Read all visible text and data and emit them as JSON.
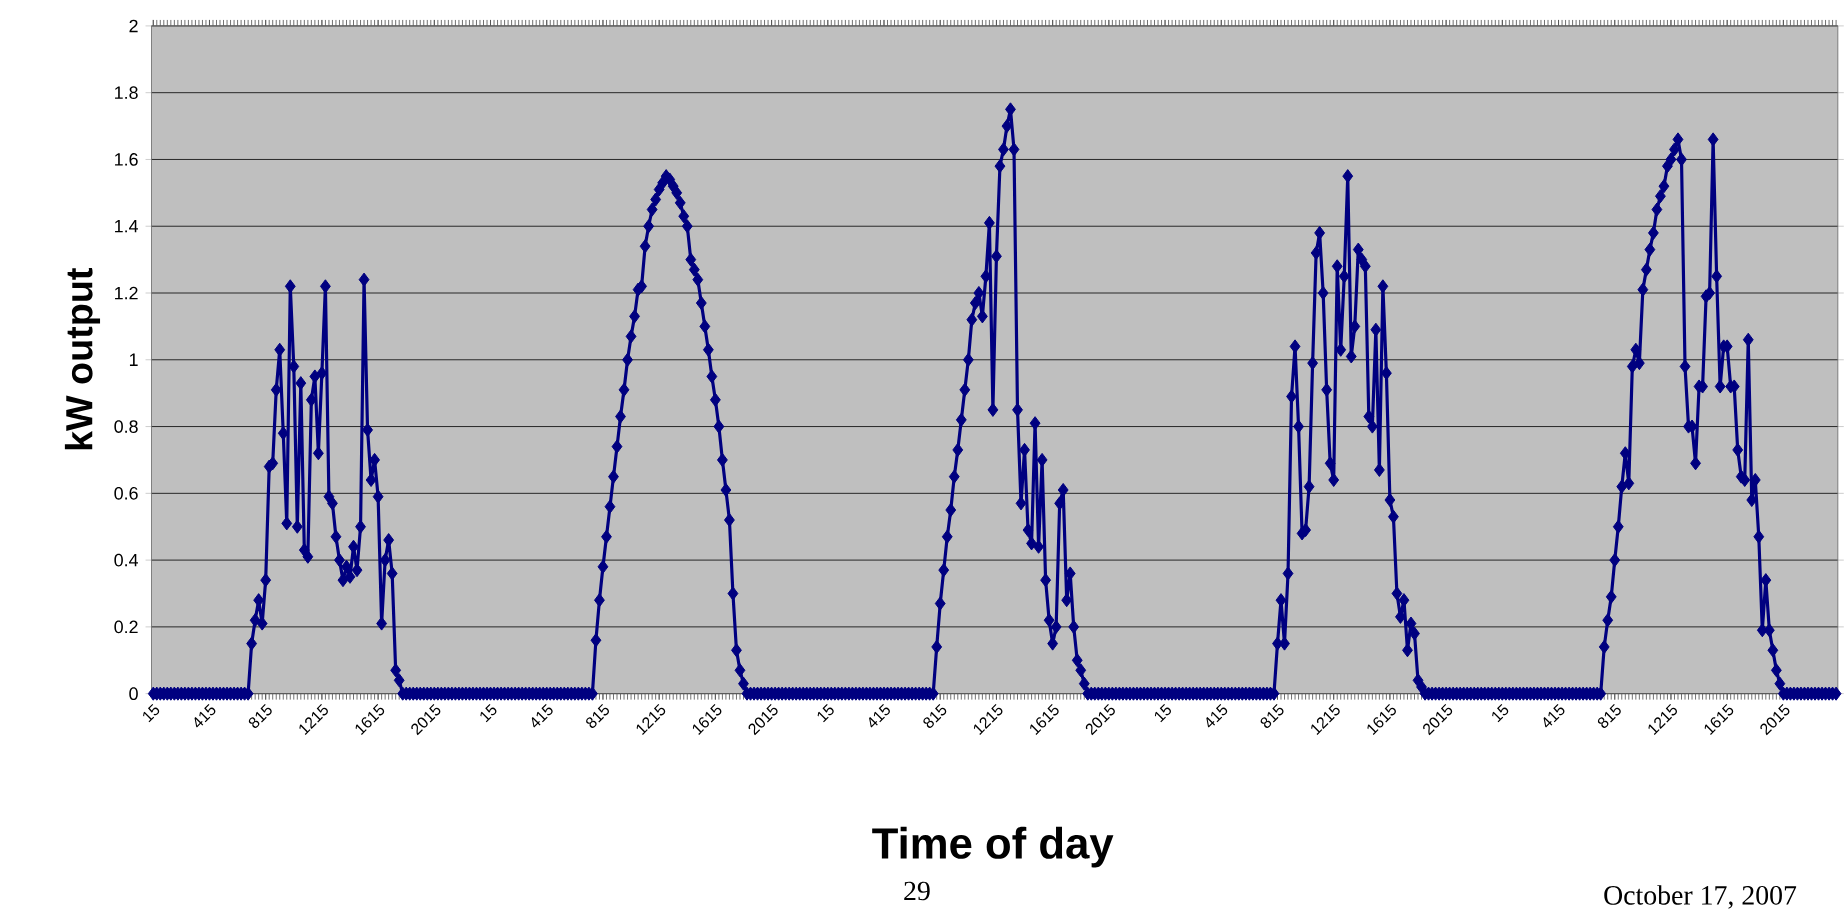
{
  "chart_data": {
    "type": "line",
    "xlabel": "Time of day",
    "ylabel": "kW output",
    "annotations": [
      "29",
      "October 17, 2007"
    ],
    "categories": [
      "15",
      null,
      null,
      null,
      null,
      null,
      null,
      null,
      null,
      null,
      null,
      null,
      null,
      null,
      null,
      null,
      "415",
      null,
      null,
      null,
      null,
      null,
      null,
      null,
      null,
      null,
      null,
      null,
      null,
      null,
      null,
      null,
      "815",
      null,
      null,
      null,
      null,
      null,
      null,
      null,
      null,
      null,
      null,
      null,
      null,
      null,
      null,
      null,
      "1215",
      null,
      null,
      null,
      null,
      null,
      null,
      null,
      null,
      null,
      null,
      null,
      null,
      null,
      null,
      null,
      "1615",
      null,
      null,
      null,
      null,
      null,
      null,
      null,
      null,
      null,
      null,
      null,
      null,
      null,
      null,
      null,
      "2015",
      null,
      null,
      null,
      null,
      null,
      null,
      null,
      null,
      null,
      null,
      null,
      null,
      null,
      null,
      null,
      "15",
      null,
      null,
      null,
      null,
      null,
      null,
      null,
      null,
      null,
      null,
      null,
      null,
      null,
      null,
      null,
      "415",
      null,
      null,
      null,
      null,
      null,
      null,
      null,
      null,
      null,
      null,
      null,
      null,
      null,
      null,
      null,
      "815",
      null,
      null,
      null,
      null,
      null,
      null,
      null,
      null,
      null,
      null,
      null,
      null,
      null,
      null,
      null,
      "1215",
      null,
      null,
      null,
      null,
      null,
      null,
      null,
      null,
      null,
      null,
      null,
      null,
      null,
      null,
      null,
      "1615",
      null,
      null,
      null,
      null,
      null,
      null,
      null,
      null,
      null,
      null,
      null,
      null,
      null,
      null,
      null,
      "2015",
      null,
      null,
      null,
      null,
      null,
      null,
      null,
      null,
      null,
      null,
      null,
      null,
      null,
      null,
      null,
      "15",
      null,
      null,
      null,
      null,
      null,
      null,
      null,
      null,
      null,
      null,
      null,
      null,
      null,
      null,
      null,
      "415",
      null,
      null,
      null,
      null,
      null,
      null,
      null,
      null,
      null,
      null,
      null,
      null,
      null,
      null,
      null,
      "815",
      null,
      null,
      null,
      null,
      null,
      null,
      null,
      null,
      null,
      null,
      null,
      null,
      null,
      null,
      null,
      "1215",
      null,
      null,
      null,
      null,
      null,
      null,
      null,
      null,
      null,
      null,
      null,
      null,
      null,
      null,
      null,
      "1615",
      null,
      null,
      null,
      null,
      null,
      null,
      null,
      null,
      null,
      null,
      null,
      null,
      null,
      null,
      null,
      "2015",
      null,
      null,
      null,
      null,
      null,
      null,
      null,
      null,
      null,
      null,
      null,
      null,
      null,
      null,
      null,
      "15",
      null,
      null,
      null,
      null,
      null,
      null,
      null,
      null,
      null,
      null,
      null,
      null,
      null,
      null,
      null,
      "415",
      null,
      null,
      null,
      null,
      null,
      null,
      null,
      null,
      null,
      null,
      null,
      null,
      null,
      null,
      null,
      "815",
      null,
      null,
      null,
      null,
      null,
      null,
      null,
      null,
      null,
      null,
      null,
      null,
      null,
      null,
      null,
      "1215",
      null,
      null,
      null,
      null,
      null,
      null,
      null,
      null,
      null,
      null,
      null,
      null,
      null,
      null,
      null,
      "1615",
      null,
      null,
      null,
      null,
      null,
      null,
      null,
      null,
      null,
      null,
      null,
      null,
      null,
      null,
      null,
      "2015",
      null,
      null,
      null,
      null,
      null,
      null,
      null,
      null,
      null,
      null,
      null,
      null,
      null,
      null,
      null,
      "15",
      null,
      null,
      null,
      null,
      null,
      null,
      null,
      null,
      null,
      null,
      null,
      null,
      null,
      null,
      null,
      "415",
      null,
      null,
      null,
      null,
      null,
      null,
      null,
      null,
      null,
      null,
      null,
      null,
      null,
      null,
      null,
      "815",
      null,
      null,
      null,
      null,
      null,
      null,
      null,
      null,
      null,
      null,
      null,
      null,
      null,
      null,
      null,
      "1215",
      null,
      null,
      null,
      null,
      null,
      null,
      null,
      null,
      null,
      null,
      null,
      null,
      null,
      null,
      null,
      "1615",
      null,
      null,
      null,
      null,
      null,
      null,
      null,
      null,
      null,
      null,
      null,
      null,
      null,
      null,
      null,
      "2015",
      null,
      null,
      null,
      null,
      null,
      null,
      null,
      null,
      null,
      null,
      null,
      null,
      null,
      null,
      null
    ],
    "values": [
      0,
      0,
      0,
      0,
      0,
      0,
      0,
      0,
      0,
      0,
      0,
      0,
      0,
      0,
      0,
      0,
      0,
      0,
      0,
      0,
      0,
      0,
      0,
      0,
      0,
      0,
      0,
      0,
      0.15,
      0.22,
      0.28,
      0.21,
      0.34,
      0.68,
      0.69,
      0.91,
      1.03,
      0.78,
      0.51,
      1.22,
      0.98,
      0.5,
      0.93,
      0.43,
      0.41,
      0.88,
      0.95,
      0.72,
      0.96,
      1.22,
      0.59,
      0.57,
      0.47,
      0.4,
      0.34,
      0.38,
      0.35,
      0.44,
      0.37,
      0.5,
      1.24,
      0.79,
      0.64,
      0.7,
      0.59,
      0.21,
      0.4,
      0.46,
      0.36,
      0.07,
      0.04,
      0,
      0,
      0,
      0,
      0,
      0,
      0,
      0,
      0,
      0,
      0,
      0,
      0,
      0,
      0,
      0,
      0,
      0,
      0,
      0,
      0,
      0,
      0,
      0,
      0,
      0,
      0,
      0,
      0,
      0,
      0,
      0,
      0,
      0,
      0,
      0,
      0,
      0,
      0,
      0,
      0,
      0,
      0,
      0,
      0,
      0,
      0,
      0,
      0,
      0,
      0,
      0,
      0,
      0,
      0,
      0.16,
      0.28,
      0.38,
      0.47,
      0.56,
      0.65,
      0.74,
      0.83,
      0.91,
      1.0,
      1.07,
      1.13,
      1.21,
      1.22,
      1.34,
      1.4,
      1.45,
      1.48,
      1.51,
      1.53,
      1.55,
      1.54,
      1.52,
      1.5,
      1.47,
      1.43,
      1.4,
      1.3,
      1.27,
      1.24,
      1.17,
      1.1,
      1.03,
      0.95,
      0.88,
      0.8,
      0.7,
      0.61,
      0.52,
      0.3,
      0.13,
      0.07,
      0.03,
      0,
      0,
      0,
      0,
      0,
      0,
      0,
      0,
      0,
      0,
      0,
      0,
      0,
      0,
      0,
      0,
      0,
      0,
      0,
      0,
      0,
      0,
      0,
      0,
      0,
      0,
      0,
      0,
      0,
      0,
      0,
      0,
      0,
      0,
      0,
      0,
      0,
      0,
      0,
      0,
      0,
      0,
      0,
      0,
      0,
      0,
      0,
      0,
      0,
      0,
      0,
      0,
      0,
      0,
      0.14,
      0.27,
      0.37,
      0.47,
      0.55,
      0.65,
      0.73,
      0.82,
      0.91,
      1.0,
      1.12,
      1.17,
      1.2,
      1.13,
      1.25,
      1.41,
      0.85,
      1.31,
      1.58,
      1.63,
      1.7,
      1.75,
      1.63,
      0.85,
      0.57,
      0.73,
      0.49,
      0.45,
      0.81,
      0.44,
      0.7,
      0.34,
      0.22,
      0.15,
      0.2,
      0.57,
      0.61,
      0.28,
      0.36,
      0.2,
      0.1,
      0.07,
      0.03,
      0,
      0,
      0,
      0,
      0,
      0,
      0,
      0,
      0,
      0,
      0,
      0,
      0,
      0,
      0,
      0,
      0,
      0,
      0,
      0,
      0,
      0,
      0,
      0,
      0,
      0,
      0,
      0,
      0,
      0,
      0,
      0,
      0,
      0,
      0,
      0,
      0,
      0,
      0,
      0,
      0,
      0,
      0,
      0,
      0,
      0,
      0,
      0,
      0,
      0,
      0,
      0,
      0,
      0,
      0.15,
      0.28,
      0.15,
      0.36,
      0.89,
      1.04,
      0.8,
      0.48,
      0.49,
      0.62,
      0.99,
      1.32,
      1.38,
      1.2,
      0.91,
      0.69,
      0.64,
      1.28,
      1.03,
      1.25,
      1.55,
      1.01,
      1.1,
      1.33,
      1.3,
      1.28,
      0.83,
      0.8,
      1.09,
      0.67,
      1.22,
      0.96,
      0.58,
      0.53,
      0.3,
      0.23,
      0.28,
      0.13,
      0.21,
      0.18,
      0.04,
      0.02,
      0,
      0,
      0,
      0,
      0,
      0,
      0,
      0,
      0,
      0,
      0,
      0,
      0,
      0,
      0,
      0,
      0,
      0,
      0,
      0,
      0,
      0,
      0,
      0,
      0,
      0,
      0,
      0,
      0,
      0,
      0,
      0,
      0,
      0,
      0,
      0,
      0,
      0,
      0,
      0,
      0,
      0,
      0,
      0,
      0,
      0,
      0,
      0,
      0,
      0,
      0,
      0.14,
      0.22,
      0.29,
      0.4,
      0.5,
      0.62,
      0.72,
      0.63,
      0.98,
      1.03,
      0.99,
      1.21,
      1.27,
      1.33,
      1.38,
      1.45,
      1.49,
      1.52,
      1.58,
      1.6,
      1.63,
      1.66,
      1.6,
      0.98,
      0.8,
      0.8,
      0.69,
      0.92,
      0.92,
      1.19,
      1.2,
      1.66,
      1.25,
      0.92,
      1.04,
      1.04,
      0.92,
      0.92,
      0.73,
      0.65,
      0.64,
      1.06,
      0.58,
      0.64,
      0.47,
      0.19,
      0.34,
      0.19,
      0.13,
      0.07,
      0.03,
      0,
      0,
      0,
      0,
      0,
      0,
      0,
      0,
      0,
      0,
      0,
      0,
      0,
      0,
      0,
      0
    ],
    "color": "#000080",
    "marker": "diamond",
    "grid": "y",
    "ylim": [
      0,
      2
    ],
    "yticks": [
      0,
      0.2,
      0.4,
      0.6,
      0.8,
      1,
      1.2,
      1.4,
      1.6,
      1.8,
      2
    ]
  }
}
